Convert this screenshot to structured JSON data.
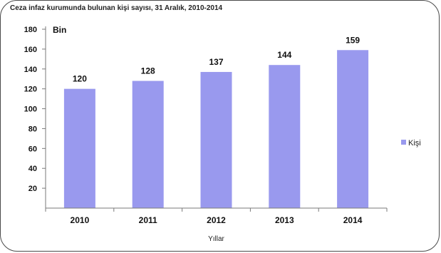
{
  "chart_data": {
    "type": "bar",
    "title": "Ceza infaz kurumunda bulunan kişi sayısı, 31 Aralık, 2010-2014",
    "ylabel": "Bin",
    "xlabel": "Yıllar",
    "categories": [
      "2010",
      "2011",
      "2012",
      "2013",
      "2014"
    ],
    "series": [
      {
        "name": "Kişi",
        "values": [
          120,
          128,
          137,
          144,
          159
        ]
      }
    ],
    "ylim": [
      0,
      180
    ],
    "yticks": [
      20,
      40,
      60,
      80,
      100,
      120,
      140,
      160,
      180
    ],
    "grid": false,
    "legend": "right",
    "colors": {
      "bar": "#9999ee",
      "axis": "#7a7a7a"
    }
  }
}
